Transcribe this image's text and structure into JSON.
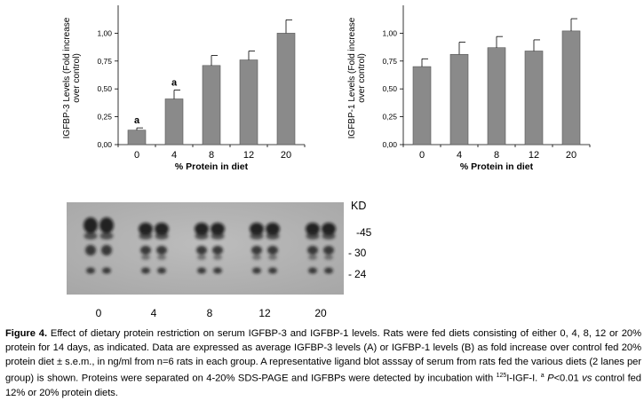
{
  "chart_data": [
    {
      "type": "bar",
      "categories": [
        "0",
        "4",
        "8",
        "12",
        "20"
      ],
      "values": [
        0.13,
        0.41,
        0.71,
        0.76,
        1.0
      ],
      "errors": [
        0.02,
        0.08,
        0.09,
        0.08,
        0.12
      ],
      "annotations": [
        "a",
        "a",
        "",
        "",
        ""
      ],
      "ylim": [
        0,
        1.25
      ],
      "yticks": [
        "0,00",
        "0,25",
        "0,50",
        "0,75",
        "1,00"
      ],
      "ylabel": "IGFBP-3 Levels (Fold increase over control)",
      "xlabel": "% Protein in diet",
      "grid": false,
      "bar_color": "#8a8a8a"
    },
    {
      "type": "bar",
      "categories": [
        "0",
        "4",
        "8",
        "12",
        "20"
      ],
      "values": [
        0.7,
        0.81,
        0.87,
        0.84,
        1.02
      ],
      "errors": [
        0.07,
        0.11,
        0.1,
        0.1,
        0.11
      ],
      "annotations": [
        "",
        "",
        "",
        "",
        ""
      ],
      "ylim": [
        0,
        1.25
      ],
      "yticks": [
        "0,00",
        "0,25",
        "0,50",
        "0,75",
        "1,00"
      ],
      "ylabel": "IGFBP-1 Levels (Fold increase over control)",
      "xlabel": "% Protein in diet",
      "grid": false,
      "bar_color": "#8a8a8a"
    }
  ],
  "blot": {
    "kd_label": "KD",
    "markers": [
      "45",
      "30",
      "24"
    ],
    "lane_labels": [
      "0",
      "4",
      "8",
      "12",
      "20"
    ]
  },
  "caption": {
    "figure_label": "Figure 4.",
    "part1": " Effect of dietary protein restriction on serum IGFBP-3 and IGFBP-1 levels. Rats were fed diets consisting of either 0, 4, 8, 12 or 20% protein for 14 days, as indicated. Data are expressed as average IGFBP-3 levels (A) or IGFBP-1 levels (B) as fold increase over control fed 20% protein diet ± s.e.m., in ng/ml from n=6 rats in each group. A representative ligand blot asssay of serum from rats fed the various diets (2 lanes per group) is shown. Proteins were separated on 4-20% SDS-PAGE and IGFBPs were detected by incubation with ",
    "superscript_125": "125",
    "part2": "I-IGF-I. ",
    "superscript_a": "a",
    "p_text": " P",
    "part3": "<0.01 ",
    "vs_text": "vs",
    "part4": " control fed 12% or 20% protein diets."
  }
}
